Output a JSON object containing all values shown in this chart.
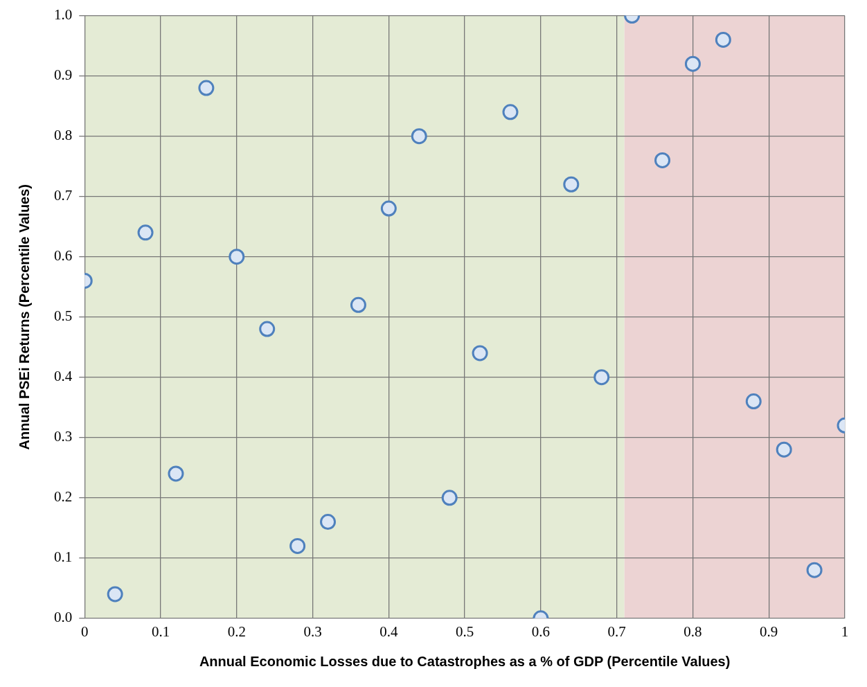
{
  "chart_data": {
    "type": "scatter",
    "xlabel": "Annual Economic Losses due to Catastrophes as a % of GDP (Percentile Values)",
    "ylabel": "Annual PSEi Returns (Percentile Values)",
    "x": [
      0,
      0.04,
      0.08,
      0.12,
      0.16,
      0.2,
      0.24,
      0.28,
      0.32,
      0.36,
      0.4,
      0.44,
      0.48,
      0.52,
      0.56,
      0.6,
      0.64,
      0.68,
      0.72,
      0.76,
      0.8,
      0.84,
      0.88,
      0.92,
      0.96,
      1
    ],
    "series": [
      {
        "color": "#4f81bd",
        "values": [
          0.56,
          0.04,
          0.64,
          0.24,
          0.88,
          0.6,
          0.48,
          0.12,
          0.16,
          0.52,
          0.68,
          0.8,
          0.2,
          0.44,
          0.84,
          0,
          0.72,
          0.4,
          1,
          0.76,
          0.92,
          0.96,
          0.36,
          0.28,
          0.08,
          0.32
        ]
      }
    ],
    "xlim": [
      0,
      1
    ],
    "xticks": [
      0,
      0.1,
      0.2,
      0.3,
      0.4,
      0.5,
      0.6,
      0.7,
      0.8,
      0.9,
      1
    ],
    "ylim": [
      0,
      1
    ],
    "yticks": [
      {
        "value": 0,
        "label": "0.0"
      },
      {
        "value": 0.1,
        "label": "0.1"
      },
      {
        "value": 0.2,
        "label": "0.2"
      },
      {
        "value": 0.3,
        "label": "0.3"
      },
      {
        "value": 0.4,
        "label": "0.4"
      },
      {
        "value": 0.5,
        "label": "0.5"
      },
      {
        "value": 0.6,
        "label": "0.6"
      },
      {
        "value": 0.7,
        "label": "0.7"
      },
      {
        "value": 0.8,
        "label": "0.8"
      },
      {
        "value": 0.9,
        "label": "0.9"
      },
      {
        "value": 1,
        "label": "1.0"
      }
    ],
    "bands": [
      {
        "axis": "x",
        "from": 0,
        "to": 0.71,
        "color": "#e4ebd5"
      },
      {
        "axis": "x",
        "from": 0.71,
        "to": 1,
        "color": "#ecd3d3"
      }
    ],
    "grid": true,
    "legend": false,
    "marker": "circle"
  }
}
